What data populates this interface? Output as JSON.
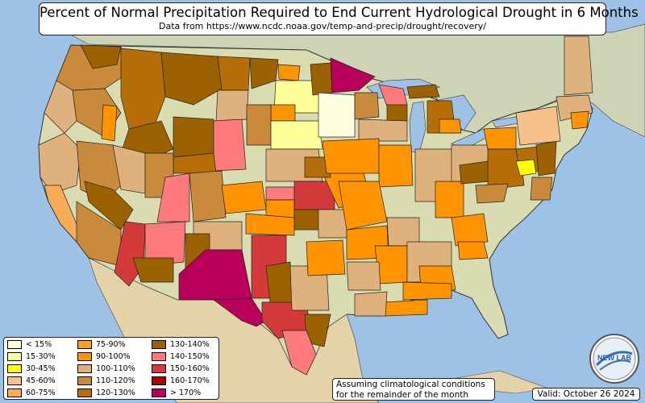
{
  "title": "Percent of Normal Precipitation Required to End Current Hydrological Drought in 6 Months",
  "subtitle": "Data from https://www.ncdc.noaa.gov/temp-and-precip/drought/recovery/",
  "note_line1": "Assuming climatological conditions",
  "note_line2": "for the remainder of the month",
  "valid": "Valid: October 26 2024",
  "logo_text": "NEW LAB",
  "colors": {
    "ocean": "#9ec1e6",
    "land_base": "#d8dcb0",
    "land_green": "#b7cc97",
    "desert": "#e4d3a8",
    "canada": "#cdd4b6"
  },
  "legend": [
    {
      "label": "< 15%",
      "color": "#ffffe0"
    },
    {
      "label": "15-30%",
      "color": "#ffff99"
    },
    {
      "label": "30-45%",
      "color": "#ffff00"
    },
    {
      "label": "45-60%",
      "color": "#f6c18a"
    },
    {
      "label": "60-75%",
      "color": "#f9ac57"
    },
    {
      "label": "75-90%",
      "color": "#ff9f1a"
    },
    {
      "label": "90-100%",
      "color": "#ff9300"
    },
    {
      "label": "100-110%",
      "color": "#deb17d"
    },
    {
      "label": "110-120%",
      "color": "#c98a3c"
    },
    {
      "label": "120-130%",
      "color": "#b76e08"
    },
    {
      "label": "130-140%",
      "color": "#9d6200"
    },
    {
      "label": "140-150%",
      "color": "#ff7a7a"
    },
    {
      "label": "150-160%",
      "color": "#d43a3a"
    },
    {
      "label": "160-170%",
      "color": "#a90000"
    },
    {
      "label": "> 170%",
      "color": "#b8005a"
    }
  ]
}
